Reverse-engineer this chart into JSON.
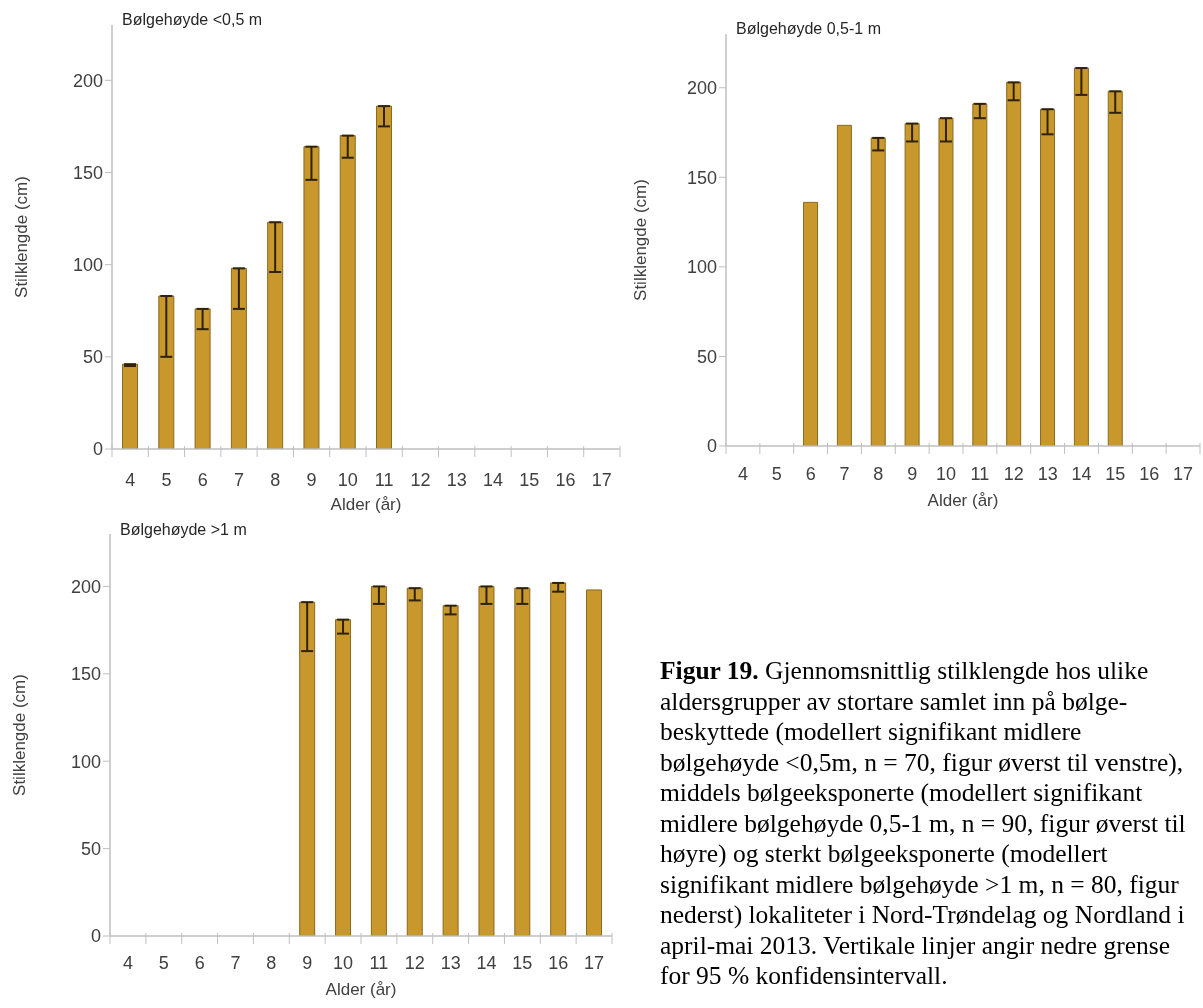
{
  "chart_data": [
    {
      "type": "bar",
      "title": "Bølgehøyde <0,5 m",
      "xlabel": "Alder (år)",
      "ylabel": "Stilklengde (cm)",
      "categories": [
        "4",
        "5",
        "6",
        "7",
        "8",
        "9",
        "10",
        "11",
        "12",
        "13",
        "14",
        "15",
        "16",
        "17"
      ],
      "values": [
        46,
        83,
        76,
        98,
        123,
        164,
        170,
        186,
        null,
        null,
        null,
        null,
        null,
        null
      ],
      "errors": [
        [
          45,
          46
        ],
        [
          50,
          83
        ],
        [
          65,
          76
        ],
        [
          76,
          98
        ],
        [
          96,
          123
        ],
        [
          146,
          164
        ],
        [
          158,
          170
        ],
        [
          175,
          186
        ],
        null,
        null,
        null,
        null,
        null,
        null
      ],
      "color": "#c8982c",
      "ylim": [
        0,
        230
      ],
      "yticks": [
        0,
        50,
        100,
        150,
        200
      ]
    },
    {
      "type": "bar",
      "title": "Bølgehøyde 0,5-1 m",
      "xlabel": "Alder (år)",
      "ylabel": "Stilklengde (cm)",
      "categories": [
        "4",
        "5",
        "6",
        "7",
        "8",
        "9",
        "10",
        "11",
        "12",
        "13",
        "14",
        "15",
        "16",
        "17"
      ],
      "values": [
        null,
        null,
        136,
        179,
        172,
        180,
        183,
        191,
        203,
        188,
        211,
        198,
        null,
        null
      ],
      "errors": [
        null,
        null,
        null,
        null,
        [
          165,
          172
        ],
        [
          170,
          180
        ],
        [
          170,
          183
        ],
        [
          183,
          191
        ],
        [
          193,
          203
        ],
        [
          174,
          188
        ],
        [
          196,
          211
        ],
        [
          186,
          198
        ],
        null,
        null
      ],
      "color": "#c8982c",
      "ylim": [
        0,
        230
      ],
      "yticks": [
        0,
        50,
        100,
        150,
        200
      ]
    },
    {
      "type": "bar",
      "title": "Bølgehøyde >1 m",
      "xlabel": "Alder (år)",
      "ylabel": "Stilklengde (cm)",
      "categories": [
        "4",
        "5",
        "6",
        "7",
        "8",
        "9",
        "10",
        "11",
        "12",
        "13",
        "14",
        "15",
        "16",
        "17"
      ],
      "values": [
        null,
        null,
        null,
        null,
        null,
        191,
        181,
        200,
        199,
        189,
        200,
        199,
        202,
        198
      ],
      "errors": [
        null,
        null,
        null,
        null,
        null,
        [
          163,
          191
        ],
        [
          173,
          181
        ],
        [
          190,
          200
        ],
        [
          192,
          199
        ],
        [
          184,
          189
        ],
        [
          190,
          200
        ],
        [
          190,
          199
        ],
        [
          197,
          202
        ],
        null
      ],
      "color": "#c8982c",
      "ylim": [
        0,
        230
      ],
      "yticks": [
        0,
        50,
        100,
        150,
        200
      ]
    },
    {
      "type": "other",
      "annotations": [
        "Figur 19.",
        "Gjennomsnittlig stilklengde hos ulike",
        "aldersgrupper av stortare samlet inn på bølge-beskyttede (modellert signifikant midlere bølgehøyde <0,5m, n = 70, figur øverst til venstre), middels bølgeeksponerte (modellert signifikant midlere bølgehøyde 0,5-1 m, n = 90, figur øverst til høyre) og sterkt bølgeeksponerte (modellert signifikant midlere bølgehøyde >1 m, n = 80, figur nederst) lokaliteter i Nord-Trøndelag og Nordland i april-mai 2013. Vertikale linjer angir nedre grense for 95 % konfidensintervall."
      ]
    }
  ]
}
